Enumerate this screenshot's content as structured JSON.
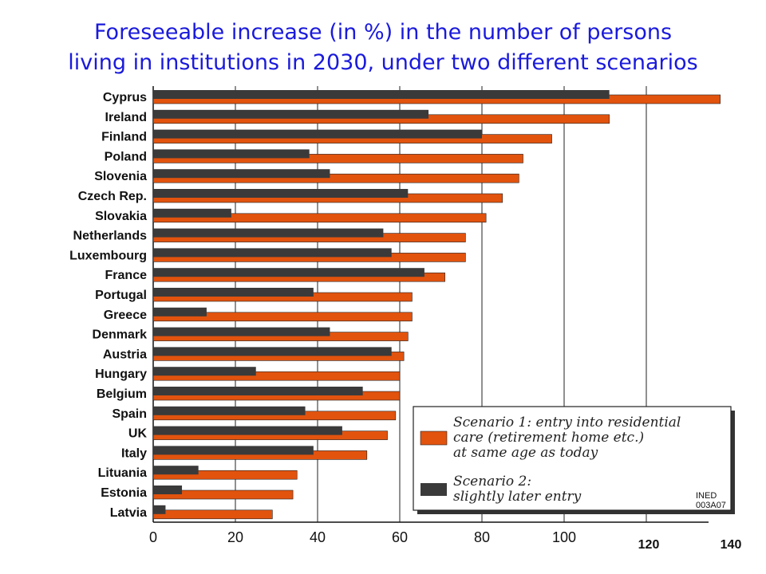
{
  "title_line1": "Foreseeable increase (in %) in the number of persons",
  "title_line2": "living in institutions in 2030, under two different scenarios",
  "chart_data": {
    "type": "bar",
    "orientation": "horizontal",
    "categories": [
      "Cyprus",
      "Ireland",
      "Finland",
      "Poland",
      "Slovenia",
      "Czech Rep.",
      "Slovakia",
      "Netherlands",
      "Luxembourg",
      "France",
      "Portugal",
      "Greece",
      "Denmark",
      "Austria",
      "Hungary",
      "Belgium",
      "Spain",
      "UK",
      "Italy",
      "Lituania",
      "Estonia",
      "Latvia"
    ],
    "series": [
      {
        "name": "Scenario 1: entry into residential care (retirement home etc.) at same age as today",
        "color": "#e2530e",
        "values": [
          138,
          111,
          97,
          90,
          89,
          85,
          81,
          76,
          76,
          71,
          63,
          63,
          62,
          61,
          60,
          60,
          59,
          57,
          52,
          35,
          34,
          29
        ]
      },
      {
        "name": "Scenario 2: slightly later entry",
        "color": "#3a3a3a",
        "values": [
          111,
          67,
          80,
          38,
          43,
          62,
          19,
          56,
          58,
          66,
          39,
          13,
          43,
          58,
          25,
          51,
          37,
          46,
          39,
          11,
          7,
          3
        ]
      }
    ],
    "xlim": [
      0,
      140
    ],
    "xticks": [
      "0",
      "20",
      "40",
      "60",
      "80",
      "100",
      "120",
      "140"
    ],
    "grid": true,
    "legend_placement": "bottom-right"
  },
  "legend": {
    "s1_lines": [
      "Scenario 1: entry into residential",
      "care (retirement home etc.)",
      "at same age as today"
    ],
    "s2_lines": [
      "Scenario 2:",
      "slightly later entry"
    ]
  },
  "stamp": [
    "INED",
    "003A07"
  ]
}
